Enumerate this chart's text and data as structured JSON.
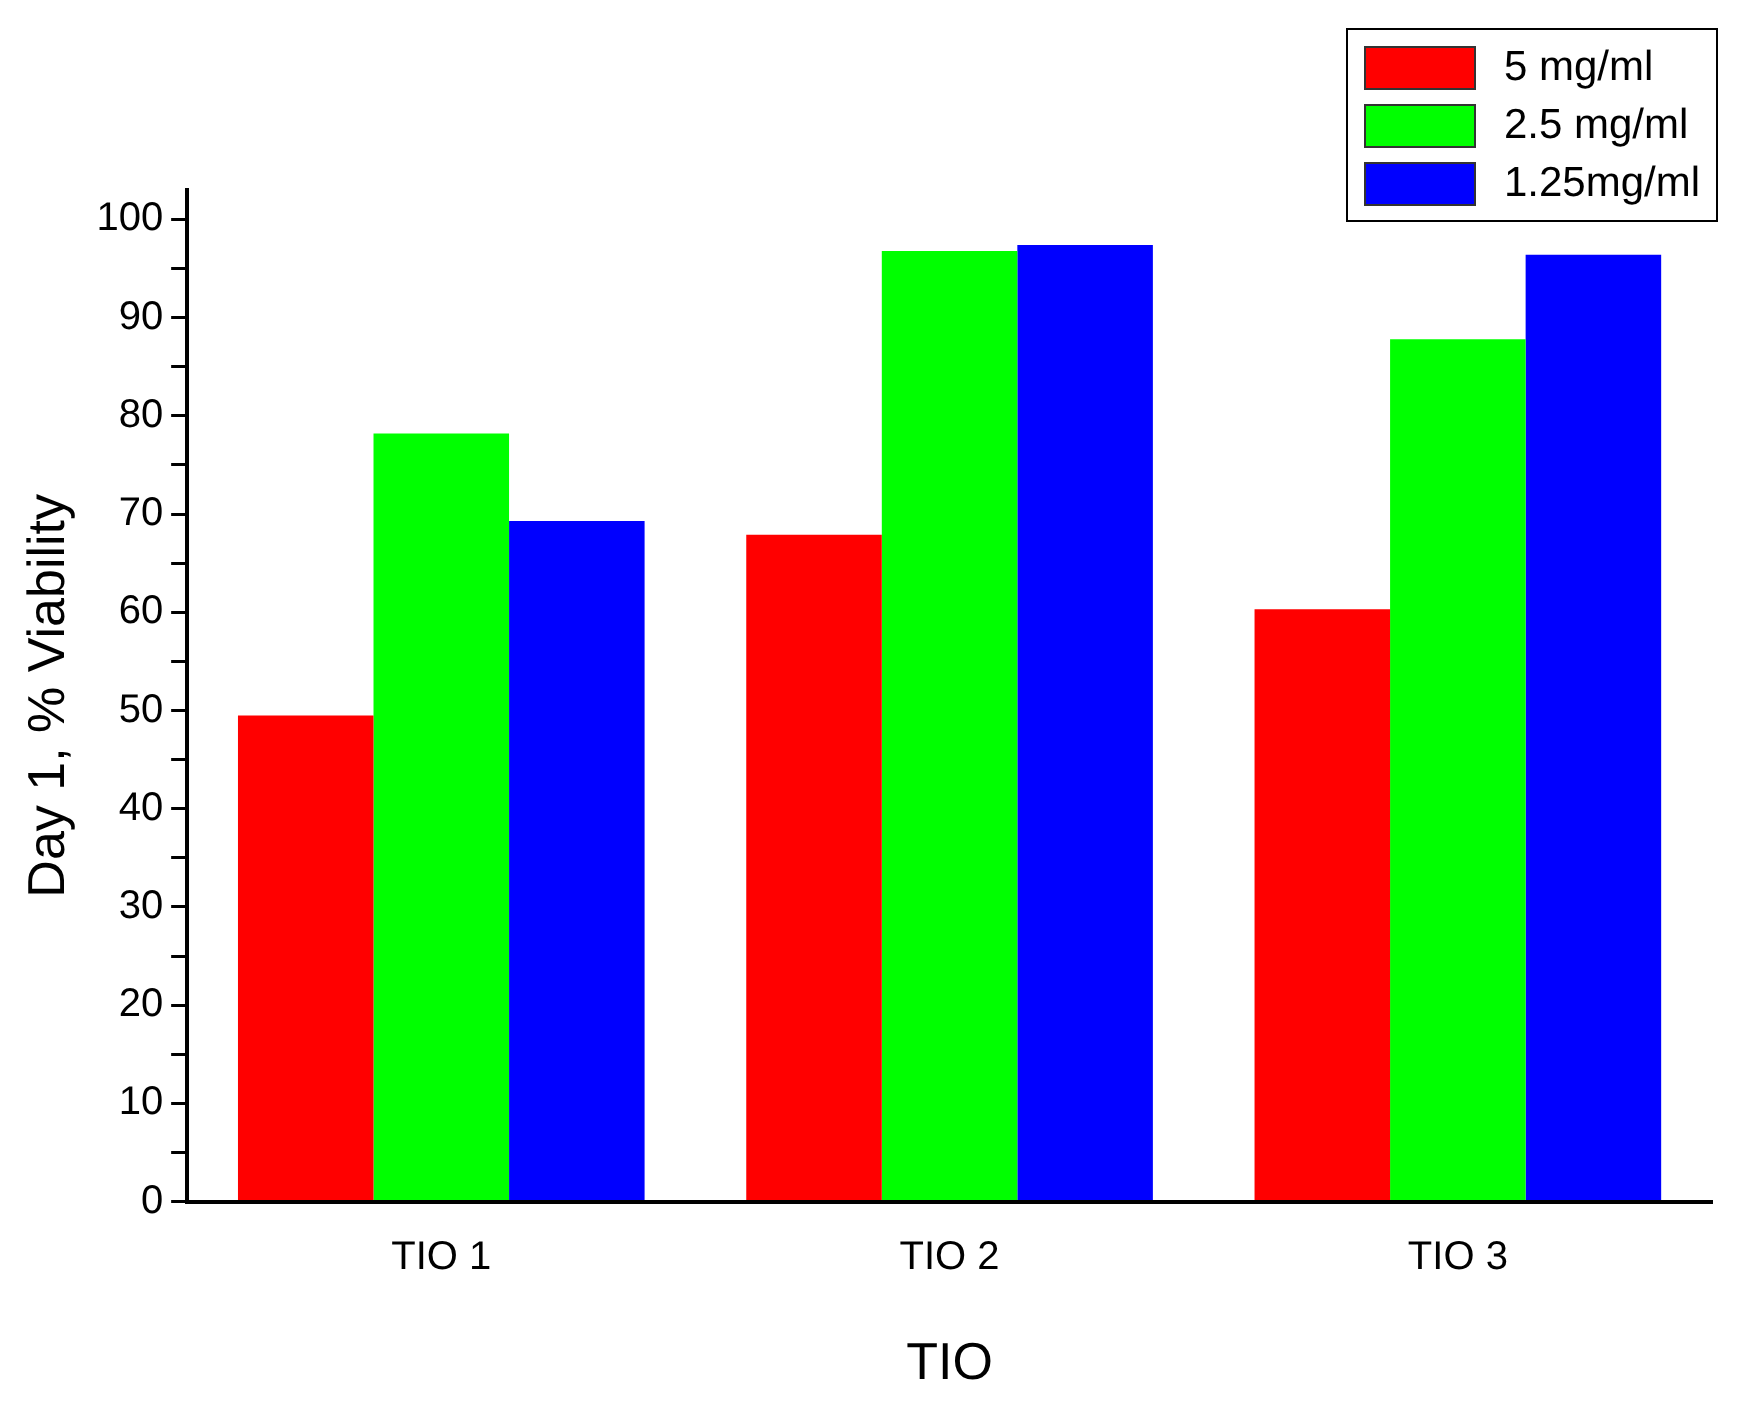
{
  "chart_data": {
    "type": "bar",
    "xlabel": "TIO",
    "ylabel": "Day 1, % Viability",
    "categories": [
      "TIO 1",
      "TIO 2",
      "TIO 3"
    ],
    "series": [
      {
        "name": "5 mg/ml",
        "color": "#ff0000",
        "values": [
          49.5,
          67.9,
          60.3
        ]
      },
      {
        "name": "2.5 mg/ml",
        "color": "#00ff00",
        "values": [
          78.2,
          96.8,
          87.8
        ]
      },
      {
        "name": "1.25mg/ml",
        "color": "#0000ff",
        "values": [
          69.3,
          97.4,
          96.4
        ]
      }
    ],
    "ylim": [
      0,
      103
    ],
    "yticks": [
      0,
      {
        "value": 5,
        "label": null
      },
      10,
      {
        "value": 15,
        "label": null
      },
      20,
      {
        "value": 25,
        "label": null
      },
      30,
      {
        "value": 35,
        "label": null
      },
      40,
      {
        "value": 45,
        "label": null
      },
      50,
      {
        "value": 55,
        "label": null
      },
      60,
      {
        "value": 65,
        "label": null
      },
      70,
      {
        "value": 75,
        "label": null
      },
      80,
      {
        "value": 85,
        "label": null
      },
      90,
      {
        "value": 95,
        "label": null
      },
      100
    ],
    "grid": false,
    "legend": "top right"
  }
}
